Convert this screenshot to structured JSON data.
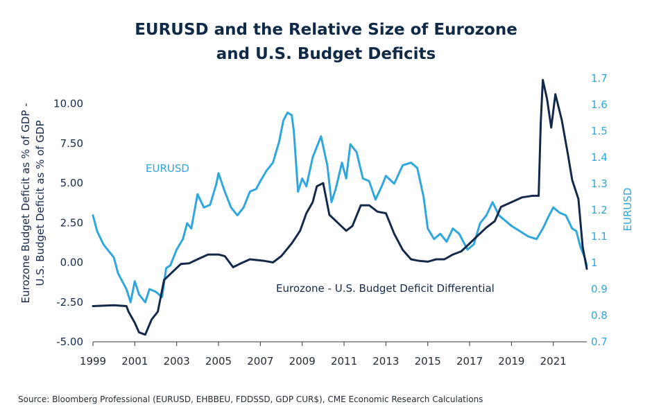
{
  "chart_data": {
    "type": "line",
    "title_lines": [
      "EURUSD and the Relative Size of Eurozone",
      "and U.S. Budget Deficits"
    ],
    "source": "Source: Bloomberg Professional (EURUSD, EHBBEU, FDDSSD, GDP CUR$), CME Economic Research Calculations",
    "x_ticks": [
      "1999",
      "2001",
      "2003",
      "2005",
      "2007",
      "2009",
      "2011",
      "2013",
      "2015",
      "2017",
      "2019",
      "2021"
    ],
    "xlim": [
      1999,
      2022.6
    ],
    "left_axis": {
      "label_lines": [
        "Eurozone Budget Deficit as % of GDP -",
        "U.S. Budget Deficit as % of GDP"
      ],
      "ticks": [
        "10.00",
        "7.50",
        "5.00",
        "2.50",
        "0.00",
        "-2.50",
        "-5.00"
      ],
      "ylim": [
        -5,
        11.6
      ]
    },
    "right_axis": {
      "label": "EURUSD",
      "ticks": [
        "1.7",
        "1.6",
        "1.5",
        "1.4",
        "1.3",
        "1.2",
        "1.1",
        "1",
        "0.9",
        "0.8",
        "0.7"
      ],
      "ylim": [
        0.7,
        1.7
      ]
    },
    "colors": {
      "differential": "#13294b",
      "eurusd": "#2fa6dc",
      "title": "#0e2a47"
    },
    "series": [
      {
        "name": "EURUSD",
        "axis": "right",
        "points": [
          [
            1999.0,
            1.18
          ],
          [
            1999.2,
            1.12
          ],
          [
            1999.5,
            1.07
          ],
          [
            1999.8,
            1.04
          ],
          [
            2000.0,
            1.02
          ],
          [
            2000.2,
            0.96
          ],
          [
            2000.4,
            0.93
          ],
          [
            2000.6,
            0.9
          ],
          [
            2000.8,
            0.85
          ],
          [
            2001.0,
            0.93
          ],
          [
            2001.2,
            0.88
          ],
          [
            2001.5,
            0.85
          ],
          [
            2001.7,
            0.9
          ],
          [
            2002.0,
            0.89
          ],
          [
            2002.3,
            0.87
          ],
          [
            2002.5,
            0.98
          ],
          [
            2002.7,
            0.99
          ],
          [
            2003.0,
            1.05
          ],
          [
            2003.3,
            1.09
          ],
          [
            2003.5,
            1.15
          ],
          [
            2003.7,
            1.13
          ],
          [
            2004.0,
            1.26
          ],
          [
            2004.3,
            1.21
          ],
          [
            2004.6,
            1.22
          ],
          [
            2004.9,
            1.3
          ],
          [
            2005.0,
            1.34
          ],
          [
            2005.3,
            1.27
          ],
          [
            2005.6,
            1.21
          ],
          [
            2005.9,
            1.18
          ],
          [
            2006.2,
            1.21
          ],
          [
            2006.5,
            1.27
          ],
          [
            2006.8,
            1.28
          ],
          [
            2007.0,
            1.31
          ],
          [
            2007.3,
            1.35
          ],
          [
            2007.6,
            1.38
          ],
          [
            2007.9,
            1.46
          ],
          [
            2008.1,
            1.54
          ],
          [
            2008.3,
            1.57
          ],
          [
            2008.5,
            1.56
          ],
          [
            2008.6,
            1.5
          ],
          [
            2008.8,
            1.27
          ],
          [
            2009.0,
            1.32
          ],
          [
            2009.2,
            1.29
          ],
          [
            2009.5,
            1.4
          ],
          [
            2009.9,
            1.48
          ],
          [
            2010.2,
            1.37
          ],
          [
            2010.4,
            1.23
          ],
          [
            2010.6,
            1.28
          ],
          [
            2010.9,
            1.38
          ],
          [
            2011.1,
            1.32
          ],
          [
            2011.3,
            1.45
          ],
          [
            2011.6,
            1.42
          ],
          [
            2011.9,
            1.32
          ],
          [
            2012.2,
            1.31
          ],
          [
            2012.5,
            1.24
          ],
          [
            2012.8,
            1.29
          ],
          [
            2013.0,
            1.33
          ],
          [
            2013.4,
            1.3
          ],
          [
            2013.8,
            1.37
          ],
          [
            2014.2,
            1.38
          ],
          [
            2014.5,
            1.36
          ],
          [
            2014.8,
            1.25
          ],
          [
            2015.0,
            1.13
          ],
          [
            2015.3,
            1.09
          ],
          [
            2015.6,
            1.11
          ],
          [
            2015.9,
            1.08
          ],
          [
            2016.2,
            1.13
          ],
          [
            2016.5,
            1.11
          ],
          [
            2016.9,
            1.05
          ],
          [
            2017.2,
            1.07
          ],
          [
            2017.5,
            1.15
          ],
          [
            2017.8,
            1.18
          ],
          [
            2018.1,
            1.23
          ],
          [
            2018.4,
            1.18
          ],
          [
            2018.7,
            1.16
          ],
          [
            2019.0,
            1.14
          ],
          [
            2019.4,
            1.12
          ],
          [
            2019.8,
            1.1
          ],
          [
            2020.2,
            1.09
          ],
          [
            2020.5,
            1.13
          ],
          [
            2020.8,
            1.18
          ],
          [
            2021.0,
            1.21
          ],
          [
            2021.3,
            1.19
          ],
          [
            2021.6,
            1.18
          ],
          [
            2021.9,
            1.13
          ],
          [
            2022.1,
            1.12
          ],
          [
            2022.3,
            1.06
          ],
          [
            2022.5,
            1.02
          ],
          [
            2022.6,
            0.99
          ]
        ]
      },
      {
        "name": "Eurozone - U.S. Budget Deficit Differential",
        "axis": "left",
        "points": [
          [
            1999.0,
            -2.75
          ],
          [
            2000.0,
            -2.7
          ],
          [
            2000.6,
            -2.75
          ],
          [
            2000.7,
            -3.1
          ],
          [
            2001.0,
            -3.8
          ],
          [
            2001.2,
            -4.4
          ],
          [
            2001.5,
            -4.55
          ],
          [
            2001.8,
            -3.6
          ],
          [
            2002.1,
            -3.1
          ],
          [
            2002.4,
            -1.1
          ],
          [
            2002.8,
            -0.6
          ],
          [
            2003.2,
            -0.1
          ],
          [
            2003.6,
            -0.05
          ],
          [
            2004.0,
            0.2
          ],
          [
            2004.5,
            0.5
          ],
          [
            2005.0,
            0.5
          ],
          [
            2005.3,
            0.4
          ],
          [
            2005.7,
            -0.3
          ],
          [
            2006.0,
            -0.1
          ],
          [
            2006.5,
            0.2
          ],
          [
            2007.2,
            0.1
          ],
          [
            2007.6,
            0.0
          ],
          [
            2008.0,
            0.4
          ],
          [
            2008.5,
            1.2
          ],
          [
            2008.9,
            2.0
          ],
          [
            2009.2,
            3.1
          ],
          [
            2009.5,
            3.8
          ],
          [
            2009.7,
            4.8
          ],
          [
            2010.0,
            5.0
          ],
          [
            2010.3,
            3.0
          ],
          [
            2010.7,
            2.5
          ],
          [
            2011.1,
            2.0
          ],
          [
            2011.4,
            2.3
          ],
          [
            2011.8,
            3.6
          ],
          [
            2012.2,
            3.6
          ],
          [
            2012.6,
            3.2
          ],
          [
            2013.0,
            3.1
          ],
          [
            2013.4,
            1.8
          ],
          [
            2013.8,
            0.8
          ],
          [
            2014.2,
            0.2
          ],
          [
            2014.6,
            0.1
          ],
          [
            2015.0,
            0.05
          ],
          [
            2015.4,
            0.2
          ],
          [
            2015.8,
            0.2
          ],
          [
            2016.2,
            0.5
          ],
          [
            2016.6,
            0.7
          ],
          [
            2017.0,
            1.2
          ],
          [
            2017.4,
            1.7
          ],
          [
            2017.8,
            2.2
          ],
          [
            2018.2,
            2.6
          ],
          [
            2018.5,
            3.5
          ],
          [
            2019.0,
            3.8
          ],
          [
            2019.5,
            4.1
          ],
          [
            2020.0,
            4.2
          ],
          [
            2020.3,
            4.2
          ],
          [
            2020.4,
            8.8
          ],
          [
            2020.5,
            11.5
          ],
          [
            2020.7,
            10.3
          ],
          [
            2020.9,
            8.5
          ],
          [
            2021.1,
            10.6
          ],
          [
            2021.4,
            9.0
          ],
          [
            2021.7,
            6.8
          ],
          [
            2021.9,
            5.2
          ],
          [
            2022.2,
            4.0
          ],
          [
            2022.4,
            1.0
          ],
          [
            2022.6,
            -0.4
          ]
        ]
      }
    ],
    "annotations": [
      {
        "text": "EURUSD",
        "series": "EURUSD"
      },
      {
        "text": "Eurozone - U.S. Budget Deficit Differential",
        "series": "Eurozone - U.S. Budget Deficit Differential"
      }
    ]
  }
}
